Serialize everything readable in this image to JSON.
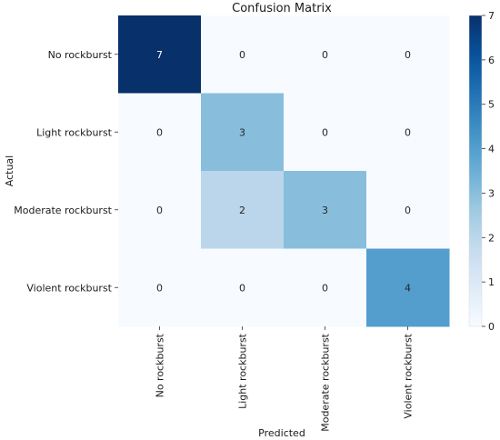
{
  "chart_data": {
    "type": "heatmap",
    "title": "Confusion Matrix",
    "xlabel": "Predicted",
    "ylabel": "Actual",
    "x_categories": [
      "No rockburst",
      "Light rockburst",
      "Moderate rockburst",
      "Violent rockburst"
    ],
    "y_categories": [
      "No rockburst",
      "Light rockburst",
      "Moderate rockburst",
      "Violent rockburst"
    ],
    "matrix": [
      [
        7,
        0,
        0,
        0
      ],
      [
        0,
        3,
        0,
        0
      ],
      [
        0,
        2,
        3,
        0
      ],
      [
        0,
        0,
        0,
        4
      ]
    ],
    "colorbar": {
      "min": 0,
      "max": 7,
      "ticks": [
        0,
        1,
        2,
        3,
        4,
        5,
        6,
        7
      ],
      "colormap": "Blues"
    }
  }
}
